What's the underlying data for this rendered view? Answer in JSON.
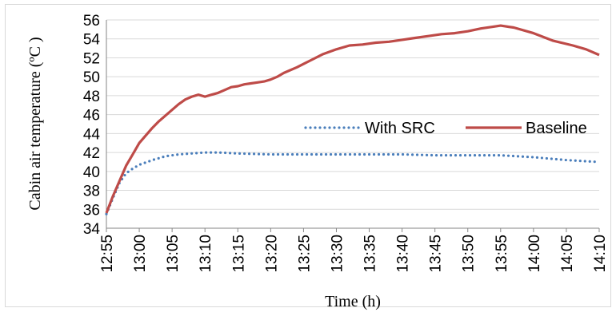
{
  "chart_data": {
    "type": "line",
    "title": "",
    "xlabel": "Time (h)",
    "ylabel": "Cabin air temperature (ºC )",
    "ylim": [
      34,
      56
    ],
    "yticks": [
      "34",
      "36",
      "38",
      "40",
      "42",
      "44",
      "46",
      "48",
      "50",
      "52",
      "54",
      "56"
    ],
    "categories": [
      "12:55",
      "13:00",
      "13:05",
      "13:10",
      "13:15",
      "13:20",
      "13:25",
      "13:30",
      "13:35",
      "13:40",
      "13:45",
      "13:50",
      "13:55",
      "14:00",
      "14:05",
      "14:10"
    ],
    "grid": "horizontal",
    "legend_position": "inside-right",
    "series": [
      {
        "name": "With SRC",
        "style": "dotted",
        "color": "#4a7ebb",
        "x": [
          "12:55",
          "12:56",
          "12:57",
          "12:58",
          "12:59",
          "13:00",
          "13:02",
          "13:04",
          "13:06",
          "13:08",
          "13:10",
          "13:12",
          "13:15",
          "13:20",
          "13:25",
          "13:30",
          "13:35",
          "13:40",
          "13:45",
          "13:50",
          "13:55",
          "14:00",
          "14:05",
          "14:10"
        ],
        "values": [
          35.5,
          37.2,
          38.8,
          39.8,
          40.3,
          40.7,
          41.2,
          41.6,
          41.8,
          41.9,
          42.0,
          42.0,
          41.9,
          41.8,
          41.8,
          41.8,
          41.8,
          41.8,
          41.7,
          41.7,
          41.7,
          41.5,
          41.2,
          41.0
        ]
      },
      {
        "name": "Baseline",
        "style": "solid",
        "color": "#be4b48",
        "x": [
          "12:55",
          "12:56",
          "12:57",
          "12:58",
          "12:59",
          "13:00",
          "13:01",
          "13:02",
          "13:03",
          "13:04",
          "13:05",
          "13:06",
          "13:07",
          "13:08",
          "13:09",
          "13:10",
          "13:11",
          "13:12",
          "13:13",
          "13:14",
          "13:15",
          "13:16",
          "13:17",
          "13:18",
          "13:19",
          "13:20",
          "13:21",
          "13:22",
          "13:24",
          "13:26",
          "13:28",
          "13:30",
          "13:32",
          "13:34",
          "13:36",
          "13:38",
          "13:40",
          "13:42",
          "13:44",
          "13:46",
          "13:48",
          "13:50",
          "13:52",
          "13:54",
          "13:55",
          "13:57",
          "14:00",
          "14:03",
          "14:06",
          "14:08",
          "14:10"
        ],
        "values": [
          35.6,
          37.4,
          39.0,
          40.6,
          41.8,
          43.0,
          43.8,
          44.6,
          45.3,
          45.9,
          46.5,
          47.1,
          47.6,
          47.9,
          48.1,
          47.9,
          48.1,
          48.3,
          48.6,
          48.9,
          49.0,
          49.2,
          49.3,
          49.4,
          49.5,
          49.7,
          50.0,
          50.4,
          51.0,
          51.7,
          52.4,
          52.9,
          53.3,
          53.4,
          53.6,
          53.7,
          53.9,
          54.1,
          54.3,
          54.5,
          54.6,
          54.8,
          55.1,
          55.3,
          55.4,
          55.2,
          54.6,
          53.8,
          53.3,
          52.9,
          52.3
        ]
      }
    ]
  }
}
